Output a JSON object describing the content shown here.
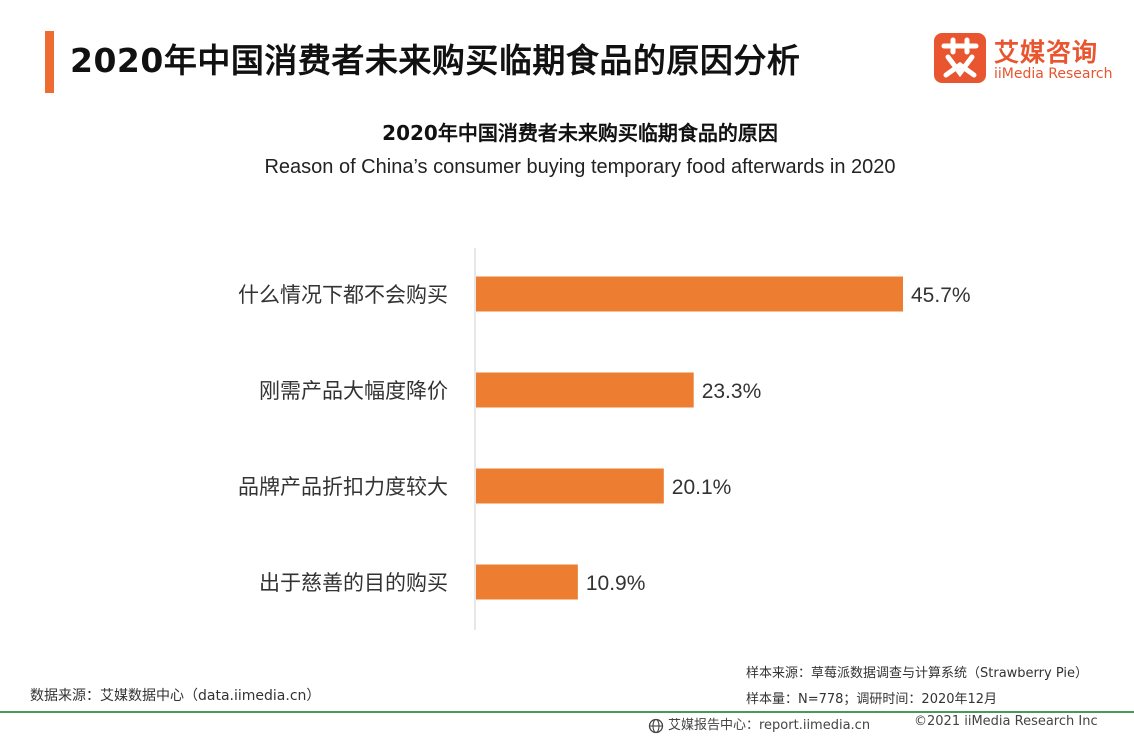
{
  "header": {
    "title": "2020年中国消费者未来购买临期食品的原因分析",
    "accent_color": "#ee6c32"
  },
  "logo": {
    "cn": "艾媒咨询",
    "en": "iiMedia Research",
    "mark": "艾",
    "color": "#e8552e"
  },
  "chart_data": {
    "type": "bar",
    "orientation": "horizontal",
    "title": "2020年中国消费者未来购买临期食品的原因",
    "subtitle": "Reason of China’s consumer buying temporary food afterwards in 2020",
    "categories": [
      "什么情况下都不会购买",
      "刚需产品大幅度降价",
      "品牌产品折扣力度较大",
      "出于慈善的目的购买"
    ],
    "values": [
      45.7,
      23.3,
      20.1,
      10.9
    ],
    "value_labels": [
      "45.7%",
      "23.3%",
      "20.1%",
      "10.9%"
    ],
    "unit": "%",
    "xlim": [
      0,
      50
    ],
    "bar_color": "#ed7d31",
    "grid": false,
    "legend": "none"
  },
  "footer": {
    "data_source": "数据来源：艾媒数据中心（data.iimedia.cn）",
    "sample_source": "样本来源：草莓派数据调查与计算系统（Strawberry Pie）",
    "sample_info": "样本量：N=778；调研时间：2020年12月",
    "report_center": "艾媒报告中心：report.iimedia.cn",
    "copyright": "©2021  iiMedia Research  Inc",
    "line_color": "#4a9a57"
  }
}
